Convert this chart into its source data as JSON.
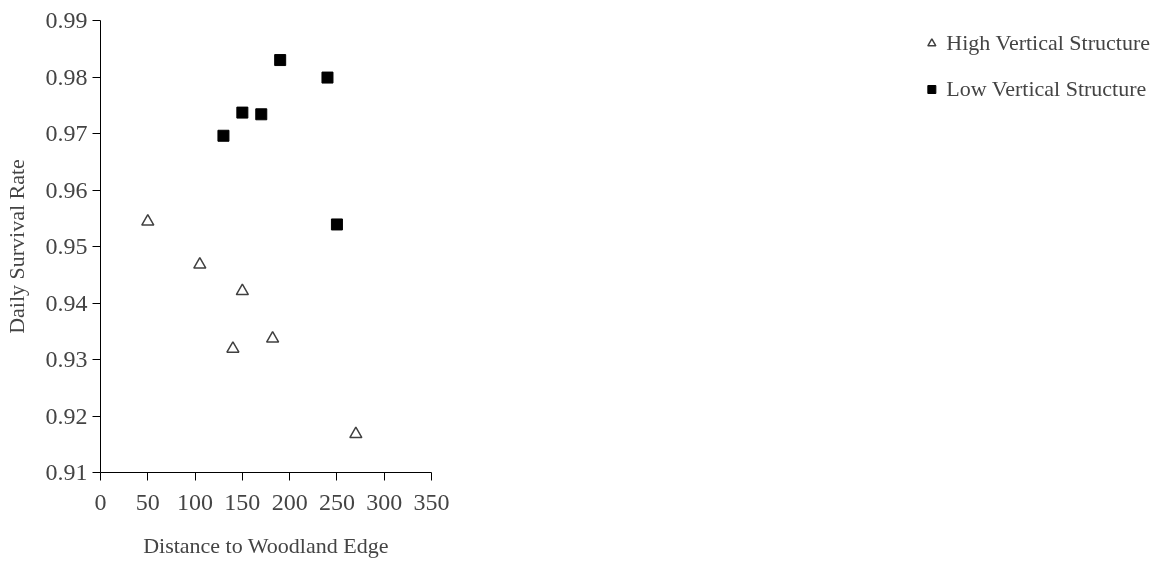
{
  "chart_data": {
    "type": "scatter",
    "xlabel": "Distance to Woodland Edge",
    "ylabel": "Daily Survival Rate",
    "xlim": [
      0,
      350
    ],
    "xticks": [
      0,
      50,
      100,
      150,
      200,
      250,
      300,
      350
    ],
    "ylim": [
      0.91,
      0.99
    ],
    "yticks": [
      0.91,
      0.92,
      0.93,
      0.94,
      0.95,
      0.96,
      0.97,
      0.98,
      0.99
    ],
    "grid": false,
    "legend": "right",
    "series": [
      {
        "name": "High Vertical Structure",
        "color": "#404040",
        "marker": "triangle",
        "x": [
          50,
          105,
          140,
          150,
          182,
          270
        ],
        "values": [
          0.9544,
          0.9468,
          0.9319,
          0.9421,
          0.9337,
          0.9168
        ]
      },
      {
        "name": "Low Vertical Structure",
        "color": "#000000",
        "marker": "square",
        "x": [
          130,
          150,
          170,
          190,
          240,
          250
        ],
        "values": [
          0.9696,
          0.9737,
          0.9734,
          0.983,
          0.9799,
          0.9539
        ]
      }
    ]
  }
}
